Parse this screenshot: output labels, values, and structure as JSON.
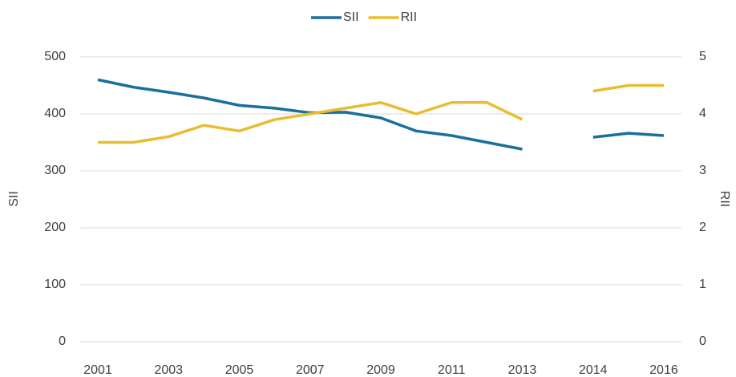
{
  "chart_data": {
    "type": "line",
    "categories": [
      "2001",
      null,
      "2003",
      null,
      "2005",
      null,
      "2007",
      null,
      "2009",
      null,
      "2011",
      null,
      "2013",
      null,
      "2014",
      null,
      "2016"
    ],
    "series": [
      {
        "name": "SII",
        "color": "#1b6f9c",
        "axis": "y",
        "values": [
          460,
          447,
          438,
          428,
          415,
          410,
          402,
          403,
          393,
          370,
          362,
          350,
          338,
          null,
          359,
          366,
          362
        ]
      },
      {
        "name": "RII",
        "color": "#e8bd30",
        "axis": "y2",
        "values": [
          3.5,
          3.5,
          3.6,
          3.8,
          3.7,
          3.9,
          4.0,
          4.1,
          4.2,
          4.0,
          4.2,
          4.2,
          3.9,
          null,
          4.4,
          4.5,
          4.5
        ]
      }
    ],
    "ylabel": "SII",
    "y2label": "RII",
    "ylim": [
      0,
      500
    ],
    "yticks": [
      0,
      100,
      200,
      300,
      400,
      500
    ],
    "y2lim": [
      0,
      5
    ],
    "y2ticks": [
      0,
      1,
      2,
      3,
      4,
      5
    ],
    "grid": true,
    "legend": "top"
  }
}
